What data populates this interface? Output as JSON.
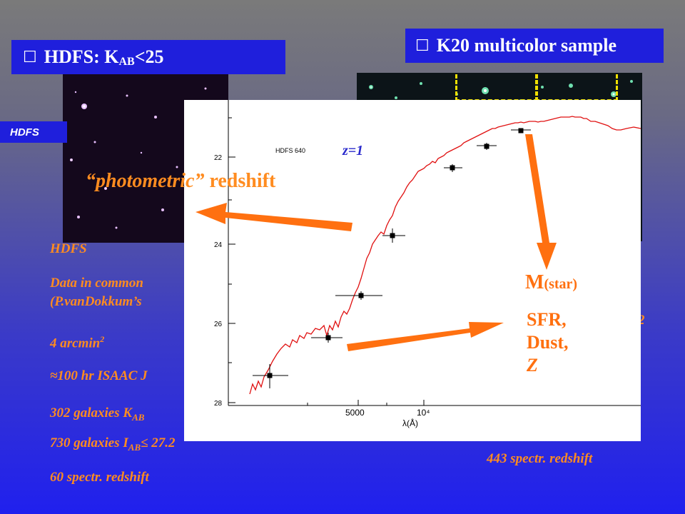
{
  "headers": {
    "hdfs": {
      "checkbox": "☐",
      "text": "HDFS: K",
      "sub": "AB",
      "tail": "<25"
    },
    "k20": {
      "checkbox": "☐",
      "text": "K20 multicolor sample"
    }
  },
  "hdfs_tag": "HDFS",
  "left_info": {
    "title": "HDFS",
    "line1": "Data in common",
    "line2": "(P.vanDokkum’s",
    "line3_a": "4 arcmin",
    "line3_sup": "2",
    "line4": "≈100 hr ISAAC J",
    "line5_a": "302 galaxies K",
    "line5_sub": "AB",
    "line6_a": "730 galaxies I",
    "line6_sub": "AB",
    "line6_b": "≤ 27.2",
    "line7": "60 spectr. redshift"
  },
  "right_info": {
    "spectr": "443 spectr.  redshift"
  },
  "plot": {
    "object_label": "HDFS 640",
    "y_ticks": [
      "22",
      "24",
      "26",
      "28"
    ],
    "x_ticks": [
      "5000",
      "10⁴"
    ],
    "x_axis_label": "λ(Å)"
  },
  "annotations": {
    "z": "z=1",
    "photometric_quoted": "“photometric”",
    "photometric_rest": " redshift",
    "mstar_main": "M",
    "mstar_sub": "(star)",
    "sfr_line1": "SFR,",
    "sfr_line2": "Dust,",
    "sfr_line3": "Z"
  },
  "colors": {
    "header_bg": "#1f1fdc",
    "accent_orange": "#ff8c20",
    "spectrum_red": "#e01010",
    "z_blue": "#2a2acc"
  }
}
